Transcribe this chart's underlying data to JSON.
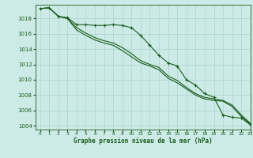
{
  "xlabel": "Graphe pression niveau de la mer (hPa)",
  "background_color": "#cceae6",
  "plot_bg_color": "#cceae6",
  "grid_color": "#aad4ce",
  "line_color": "#1a5c1a",
  "ylim": [
    1003.5,
    1019.8
  ],
  "xlim": [
    -0.5,
    23
  ],
  "yticks": [
    1004,
    1006,
    1008,
    1010,
    1012,
    1014,
    1016,
    1018
  ],
  "xticks": [
    0,
    1,
    2,
    3,
    4,
    5,
    6,
    7,
    8,
    9,
    10,
    11,
    12,
    13,
    14,
    15,
    16,
    17,
    18,
    19,
    20,
    21,
    22,
    23
  ],
  "line1_x": [
    0,
    1,
    2,
    3,
    4,
    5,
    6,
    7,
    8,
    9,
    10,
    11,
    12,
    13,
    14,
    15,
    16,
    17,
    18,
    19,
    20,
    21,
    22,
    23
  ],
  "line1_y": [
    1019.3,
    1019.4,
    1018.3,
    1018.1,
    1017.2,
    1017.2,
    1017.1,
    1017.1,
    1017.2,
    1017.1,
    1016.8,
    1015.8,
    1014.5,
    1013.2,
    1012.2,
    1011.8,
    1010.0,
    1009.3,
    1008.2,
    1007.7,
    1005.4,
    1005.1,
    1005.0,
    1004.1
  ],
  "line2_x": [
    0,
    1,
    2,
    3,
    4,
    5,
    6,
    7,
    8,
    9,
    10,
    11,
    12,
    13,
    14,
    15,
    16,
    17,
    18,
    19,
    20,
    21,
    22,
    23
  ],
  "line2_y": [
    1019.3,
    1019.4,
    1018.3,
    1018.0,
    1016.5,
    1015.8,
    1015.2,
    1014.8,
    1014.5,
    1013.8,
    1013.0,
    1012.2,
    1011.8,
    1011.3,
    1010.2,
    1009.6,
    1008.8,
    1008.0,
    1007.5,
    1007.3,
    1007.2,
    1006.5,
    1005.2,
    1004.2
  ],
  "line3_x": [
    0,
    1,
    2,
    3,
    4,
    5,
    6,
    7,
    8,
    9,
    10,
    11,
    12,
    13,
    14,
    15,
    16,
    17,
    18,
    19,
    20,
    21,
    22,
    23
  ],
  "line3_y": [
    1019.3,
    1019.4,
    1018.3,
    1018.0,
    1016.8,
    1016.1,
    1015.5,
    1015.1,
    1014.8,
    1014.2,
    1013.4,
    1012.5,
    1012.0,
    1011.6,
    1010.5,
    1009.9,
    1009.0,
    1008.2,
    1007.7,
    1007.5,
    1007.3,
    1006.7,
    1005.4,
    1004.3
  ]
}
